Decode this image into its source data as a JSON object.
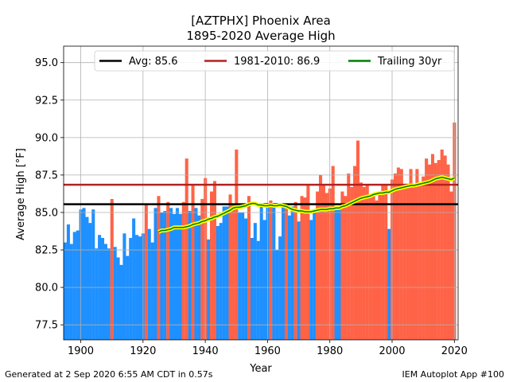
{
  "chart_data": {
    "type": "bar",
    "title": "[AZTPHX] Phoenix Area",
    "subtitle": "1895-2020 Average High",
    "xlabel": "Year",
    "ylabel": "Average High [°F]",
    "xlim": [
      1894.5,
      2021.2
    ],
    "ylim": [
      76.5,
      96.1
    ],
    "xticks": [
      1900,
      1920,
      1940,
      1960,
      1980,
      2000,
      2020
    ],
    "yticks": [
      77.5,
      80.0,
      82.5,
      85.0,
      87.5,
      90.0,
      92.5,
      95.0
    ],
    "grid": true,
    "legend_position": "top",
    "colors": {
      "below": "#1e90ff",
      "above": "#ff6347",
      "avg": "#000000",
      "normal": "#b22222",
      "trailing": "#008000",
      "trailing_glow": "#ffff00"
    },
    "reference_lines": [
      {
        "name": "Avg: 85.6",
        "value": 85.55,
        "color": "#000000"
      },
      {
        "name": "1981-2010: 86.9",
        "value": 86.85,
        "color": "#b22222"
      }
    ],
    "trailing_series_name": "Trailing 30yr",
    "years": [
      1895,
      1896,
      1897,
      1898,
      1899,
      1900,
      1901,
      1902,
      1903,
      1904,
      1905,
      1906,
      1907,
      1908,
      1909,
      1910,
      1911,
      1912,
      1913,
      1914,
      1915,
      1916,
      1917,
      1918,
      1919,
      1920,
      1921,
      1922,
      1923,
      1924,
      1925,
      1926,
      1927,
      1928,
      1929,
      1930,
      1931,
      1932,
      1933,
      1934,
      1935,
      1936,
      1937,
      1938,
      1939,
      1940,
      1941,
      1942,
      1943,
      1944,
      1945,
      1946,
      1947,
      1948,
      1949,
      1950,
      1951,
      1952,
      1953,
      1954,
      1955,
      1956,
      1957,
      1958,
      1959,
      1960,
      1961,
      1962,
      1963,
      1964,
      1965,
      1966,
      1967,
      1968,
      1969,
      1970,
      1971,
      1972,
      1973,
      1974,
      1975,
      1976,
      1977,
      1978,
      1979,
      1980,
      1981,
      1982,
      1983,
      1984,
      1985,
      1986,
      1987,
      1988,
      1989,
      1990,
      1991,
      1992,
      1993,
      1994,
      1995,
      1996,
      1997,
      1998,
      1999,
      2000,
      2001,
      2002,
      2003,
      2004,
      2005,
      2006,
      2007,
      2008,
      2009,
      2010,
      2011,
      2012,
      2013,
      2014,
      2015,
      2016,
      2017,
      2018,
      2019,
      2020
    ],
    "values": [
      83.0,
      84.2,
      82.9,
      83.7,
      83.8,
      85.2,
      85.3,
      84.7,
      84.3,
      85.2,
      82.6,
      83.5,
      83.3,
      82.9,
      82.6,
      85.9,
      82.7,
      82.0,
      81.5,
      83.6,
      82.1,
      83.3,
      84.6,
      83.5,
      83.4,
      83.6,
      85.6,
      83.9,
      83.0,
      85.3,
      86.1,
      85.0,
      85.1,
      85.7,
      85.3,
      84.9,
      85.3,
      84.9,
      85.7,
      88.6,
      85.1,
      86.8,
      85.3,
      84.8,
      85.9,
      87.3,
      83.2,
      86.4,
      87.1,
      84.1,
      84.3,
      85.4,
      85.4,
      86.2,
      85.6,
      89.2,
      85.0,
      85.0,
      84.6,
      86.1,
      83.3,
      84.3,
      83.1,
      85.4,
      84.5,
      85.5,
      85.8,
      85.5,
      82.5,
      83.4,
      85.5,
      85.6,
      84.8,
      85.4,
      85.7,
      84.4,
      86.1,
      86.0,
      86.8,
      84.5,
      85.2,
      86.4,
      87.5,
      86.9,
      86.3,
      86.6,
      88.1,
      85.3,
      85.3,
      86.4,
      86.1,
      87.6,
      86.7,
      88.1,
      89.8,
      87.0,
      86.7,
      86.9,
      86.0,
      86.3,
      85.8,
      86.3,
      86.9,
      86.8,
      83.9,
      87.2,
      87.6,
      88.0,
      87.9,
      86.7,
      86.9,
      87.9,
      86.7,
      87.9,
      86.8,
      87.4,
      88.6,
      88.2,
      88.9,
      88.3,
      88.5,
      89.2,
      88.8,
      88.2,
      86.4,
      91.0
    ],
    "trailing_30yr": {
      "start_year": 1925,
      "values": [
        83.7,
        83.8,
        83.8,
        83.85,
        83.9,
        84.0,
        84.0,
        84.0,
        84.0,
        84.05,
        84.1,
        84.2,
        84.25,
        84.3,
        84.4,
        84.45,
        84.55,
        84.6,
        84.7,
        84.75,
        84.85,
        84.95,
        85.05,
        85.15,
        85.3,
        85.35,
        85.35,
        85.4,
        85.45,
        85.55,
        85.6,
        85.6,
        85.5,
        85.5,
        85.45,
        85.45,
        85.5,
        85.45,
        85.45,
        85.5,
        85.45,
        85.4,
        85.3,
        85.2,
        85.15,
        85.1,
        85.1,
        85.05,
        85.05,
        85.05,
        85.1,
        85.15,
        85.2,
        85.2,
        85.2,
        85.25,
        85.25,
        85.3,
        85.3,
        85.4,
        85.45,
        85.55,
        85.65,
        85.75,
        85.85,
        85.95,
        86.0,
        86.05,
        86.1,
        86.2,
        86.25,
        86.3,
        86.3,
        86.35,
        86.35,
        86.45,
        86.55,
        86.6,
        86.65,
        86.7,
        86.75,
        86.8,
        86.8,
        86.85,
        86.9,
        86.95,
        87.0,
        87.05,
        87.15,
        87.25,
        87.3,
        87.35,
        87.3,
        87.25,
        87.2,
        87.3
      ]
    }
  },
  "footer": {
    "left": "Generated at 2 Sep 2020 6:55 AM CDT in 0.57s",
    "right": "IEM Autoplot App #100"
  }
}
